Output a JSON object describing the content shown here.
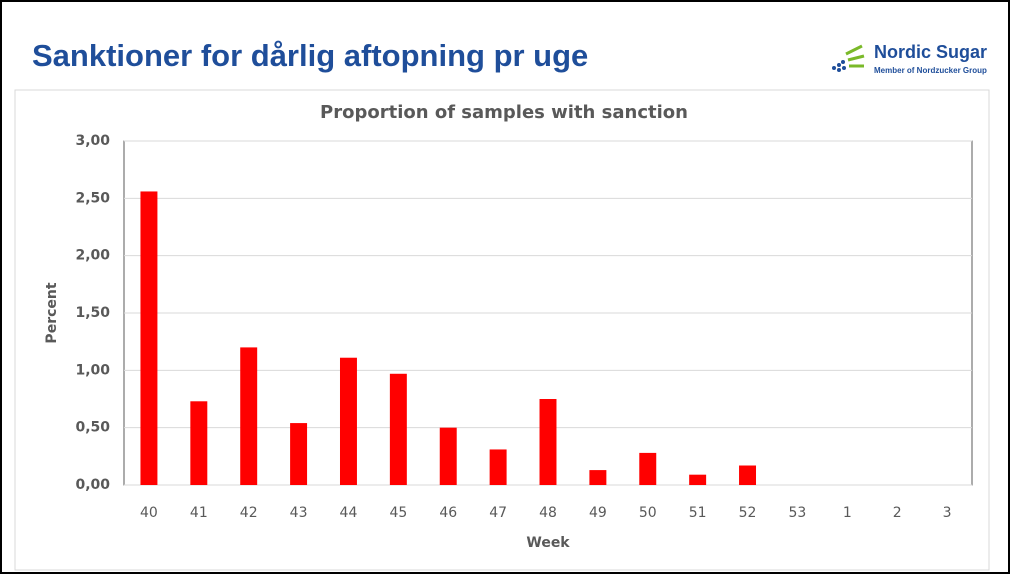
{
  "slide": {
    "title": "Sanktioner for dårlig aftopning pr uge",
    "logo": {
      "name": "Nordic Sugar",
      "subtitle": "Member of Nordzucker Group"
    }
  },
  "chart_data": {
    "type": "bar",
    "title": "Proportion of samples with sanction",
    "x_label": "Week",
    "y_label": "Percent",
    "categories": [
      "40",
      "41",
      "42",
      "43",
      "44",
      "45",
      "46",
      "47",
      "48",
      "49",
      "50",
      "51",
      "52",
      "53",
      "1",
      "2",
      "3"
    ],
    "values": [
      2.56,
      0.73,
      1.2,
      0.54,
      1.11,
      0.97,
      0.5,
      0.31,
      0.75,
      0.13,
      0.28,
      0.09,
      0.17,
      0,
      0,
      0,
      0
    ],
    "color": "#ff0000",
    "ylim": [
      0,
      3
    ],
    "yticks": [
      {
        "value": 0,
        "label": "0,00"
      },
      {
        "value": 0.5,
        "label": "0,50"
      },
      {
        "value": 1,
        "label": "1,00"
      },
      {
        "value": 1.5,
        "label": "1,50"
      },
      {
        "value": 2,
        "label": "2,00"
      },
      {
        "value": 2.5,
        "label": "2,50"
      },
      {
        "value": 3,
        "label": "3,00"
      }
    ],
    "grid": true
  }
}
